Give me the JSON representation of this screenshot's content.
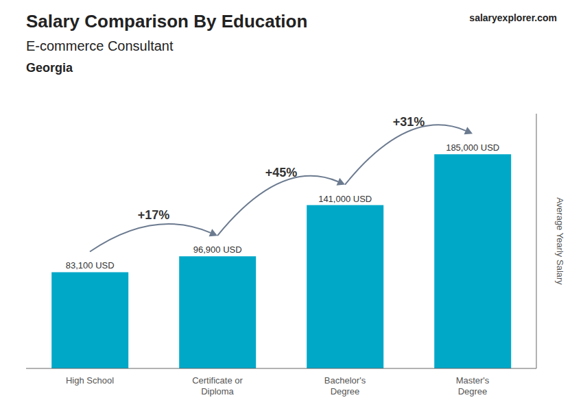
{
  "chart_data": {
    "type": "bar",
    "title": "Salary Comparison By Education",
    "subtitle": "E-commerce Consultant",
    "ylabel": "Average Yearly Salary",
    "categories": [
      "High School",
      "Certificate or\nDiploma",
      "Bachelor's\nDegree",
      "Master's\nDegree"
    ],
    "values": [
      83100,
      96900,
      141000,
      185000
    ],
    "value_labels": [
      "83,100 USD",
      "96,900 USD",
      "141,000 USD",
      "185,000 USD"
    ],
    "data_labels": true,
    "color": "#00a8c8",
    "ylim": [
      0,
      220000
    ],
    "tick_labels": "x",
    "grid": false,
    "annotations": [
      {
        "text": "Georgia"
      },
      {
        "text": "salary"
      },
      {
        "text": "explorer"
      },
      {
        "text": ".com"
      },
      {
        "text": "+17%",
        "from": "High School",
        "to": "Certificate or\nDiploma"
      },
      {
        "text": "+45%",
        "from": "Certificate or\nDiploma",
        "to": "Bachelor's\nDegree"
      },
      {
        "text": "+31%",
        "from": "Bachelor's\nDegree",
        "to": "Master's\nDegree"
      }
    ]
  }
}
